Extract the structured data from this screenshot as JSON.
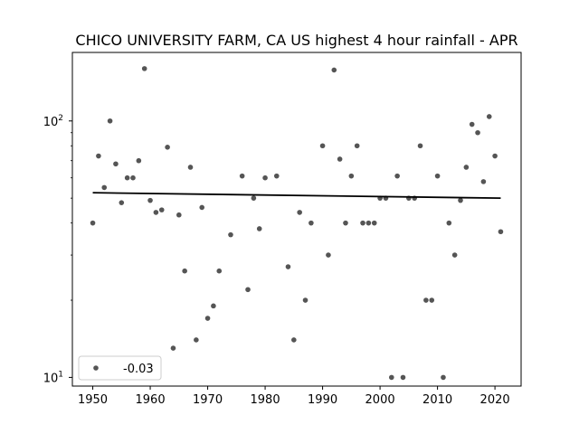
{
  "chart_data": {
    "type": "scatter",
    "title": "CHICO UNIVERSITY FARM, CA US highest 4 hour rainfall - APR",
    "xlabel": "",
    "ylabel": "",
    "xlim": [
      1946.45,
      2024.55
    ],
    "ylim": [
      9.25,
      185
    ],
    "y_scale": "log",
    "x_ticks": [
      1950,
      1960,
      1970,
      1980,
      1990,
      2000,
      2010,
      2020
    ],
    "y_ticks": [
      {
        "value": 10,
        "base": "10",
        "exp": "1"
      },
      {
        "value": 100,
        "base": "10",
        "exp": "2"
      }
    ],
    "grid": false,
    "legend": {
      "position": "lower-left",
      "entries": [
        "-0.03"
      ]
    },
    "colors": {
      "points": "#555555",
      "trend": "#000000"
    },
    "series": [
      {
        "name": "-0.03",
        "x": [
          1950,
          1951,
          1952,
          1953,
          1954,
          1955,
          1956,
          1957,
          1958,
          1959,
          1960,
          1961,
          1962,
          1963,
          1964,
          1965,
          1966,
          1967,
          1968,
          1969,
          1970,
          1971,
          1972,
          1974,
          1976,
          1977,
          1978,
          1979,
          1980,
          1982,
          1984,
          1985,
          1986,
          1987,
          1988,
          1990,
          1991,
          1992,
          1993,
          1994,
          1995,
          1996,
          1997,
          1998,
          1999,
          2000,
          2001,
          2002,
          2003,
          2004,
          2005,
          2006,
          2007,
          2008,
          2009,
          2010,
          2011,
          2012,
          2013,
          2014,
          2015,
          2016,
          2017,
          2018,
          2019,
          2020,
          2021
        ],
        "y": [
          40,
          73,
          55,
          100,
          68,
          48,
          60,
          60,
          70,
          160,
          49,
          44,
          45,
          79,
          13,
          43,
          26,
          66,
          14,
          46,
          17,
          19,
          26,
          36,
          61,
          22,
          50,
          38,
          60,
          61,
          27,
          14,
          44,
          20,
          40,
          80,
          30,
          158,
          71,
          40,
          61,
          80,
          40,
          40,
          40,
          50,
          50,
          10,
          61,
          10,
          50,
          50,
          80,
          20,
          20,
          61,
          10,
          40,
          30,
          49,
          66,
          97,
          90,
          58,
          104,
          73,
          37
        ]
      }
    ],
    "trend": {
      "x": [
        1950,
        2021
      ],
      "y": [
        52.5,
        50.0
      ]
    }
  }
}
